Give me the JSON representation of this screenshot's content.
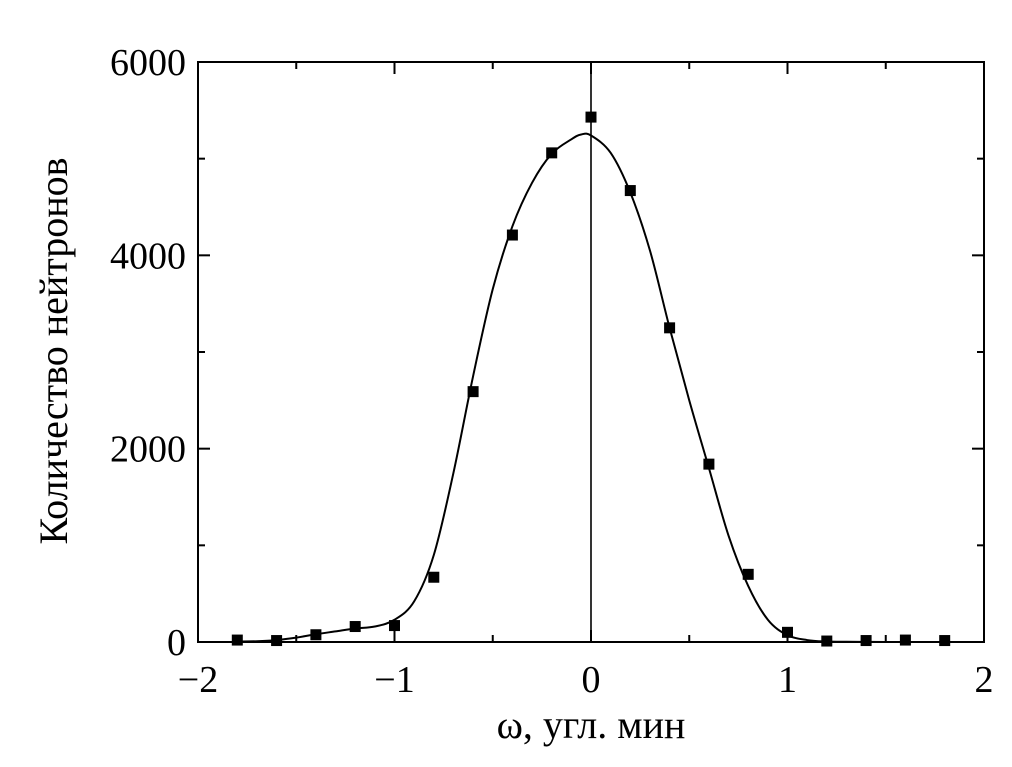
{
  "chart_data": {
    "type": "scatter",
    "xlabel": "ω, угл. мин",
    "ylabel": "Количество нейтронов",
    "xlim": [
      -2,
      2
    ],
    "ylim": [
      0,
      6000
    ],
    "x_ticks": [
      -2,
      -1,
      0,
      1,
      2
    ],
    "x_tick_labels": [
      "−2",
      "−1",
      "0",
      "1",
      "2"
    ],
    "y_ticks": [
      0,
      2000,
      4000,
      6000
    ],
    "y_tick_labels": [
      "0",
      "2000",
      "4000",
      "6000"
    ],
    "grid": false,
    "vertical_reference_line_x": 0,
    "series": [
      {
        "kind": "points",
        "marker": "square",
        "x": [
          -1.8,
          -1.6,
          -1.4,
          -1.2,
          -1.0,
          -0.8,
          -0.6,
          -0.4,
          -0.2,
          0.0,
          0.2,
          0.4,
          0.6,
          0.8,
          1.0,
          1.2,
          1.4,
          1.6,
          1.8
        ],
        "y": [
          20,
          15,
          75,
          160,
          170,
          670,
          2590,
          4210,
          5060,
          5430,
          4670,
          3250,
          1840,
          700,
          100,
          10,
          15,
          20,
          15
        ]
      },
      {
        "kind": "line",
        "x": [
          -1.8,
          -1.7,
          -1.6,
          -1.5,
          -1.4,
          -1.3,
          -1.2,
          -1.1,
          -1.0,
          -0.9,
          -0.8,
          -0.7,
          -0.6,
          -0.5,
          -0.4,
          -0.3,
          -0.2,
          -0.1,
          -0.05,
          0.0,
          0.1,
          0.2,
          0.3,
          0.4,
          0.5,
          0.6,
          0.7,
          0.8,
          0.9,
          1.0,
          1.1,
          1.2,
          1.3,
          1.4,
          1.5,
          1.6,
          1.7,
          1.8
        ],
        "y": [
          5,
          8,
          20,
          45,
          80,
          110,
          140,
          160,
          230,
          420,
          900,
          1750,
          2750,
          3650,
          4300,
          4750,
          5050,
          5200,
          5250,
          5240,
          5060,
          4650,
          4050,
          3250,
          2500,
          1800,
          1100,
          580,
          230,
          70,
          20,
          5,
          2,
          1,
          0,
          0,
          0,
          0
        ]
      }
    ]
  }
}
